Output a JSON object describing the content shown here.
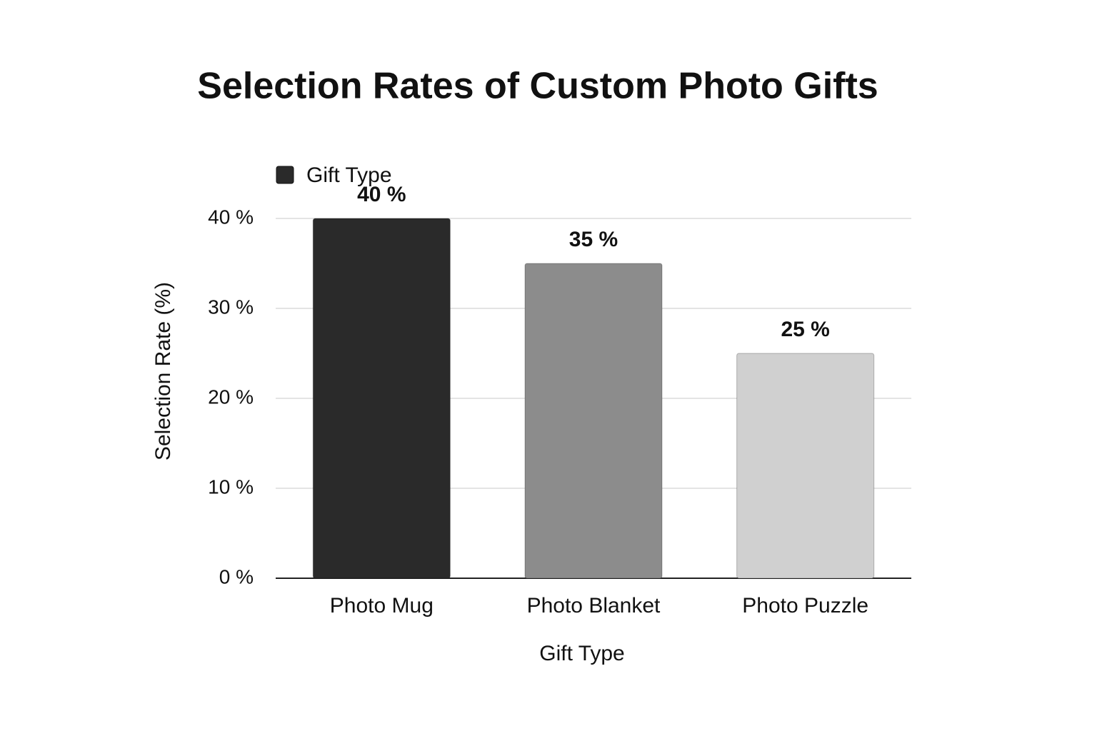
{
  "chart_data": {
    "type": "bar",
    "title": "Selection Rates of Custom Photo Gifts",
    "x_label": "Gift Type",
    "y_label": "Selection Rate (%)",
    "categories": [
      "Photo Mug",
      "Photo Blanket",
      "Photo Puzzle"
    ],
    "series": [
      {
        "name": "Gift Type",
        "color": "#2a2a2a",
        "values": [
          40,
          35,
          25
        ],
        "value_labels": [
          "40 %",
          "35 %",
          "25 %"
        ]
      }
    ],
    "colors": [
      "#2a2a2a",
      "#8c8c8c",
      "#d0d0d0"
    ],
    "ylim": [
      0,
      40
    ],
    "yticks": [
      {
        "value": 0,
        "label": "0 %"
      },
      {
        "value": 10,
        "label": "10 %"
      },
      {
        "value": 20,
        "label": "20 %"
      },
      {
        "value": 30,
        "label": "30 %"
      },
      {
        "value": 40,
        "label": "40 %"
      }
    ],
    "grid": true,
    "legend": "top-left"
  }
}
